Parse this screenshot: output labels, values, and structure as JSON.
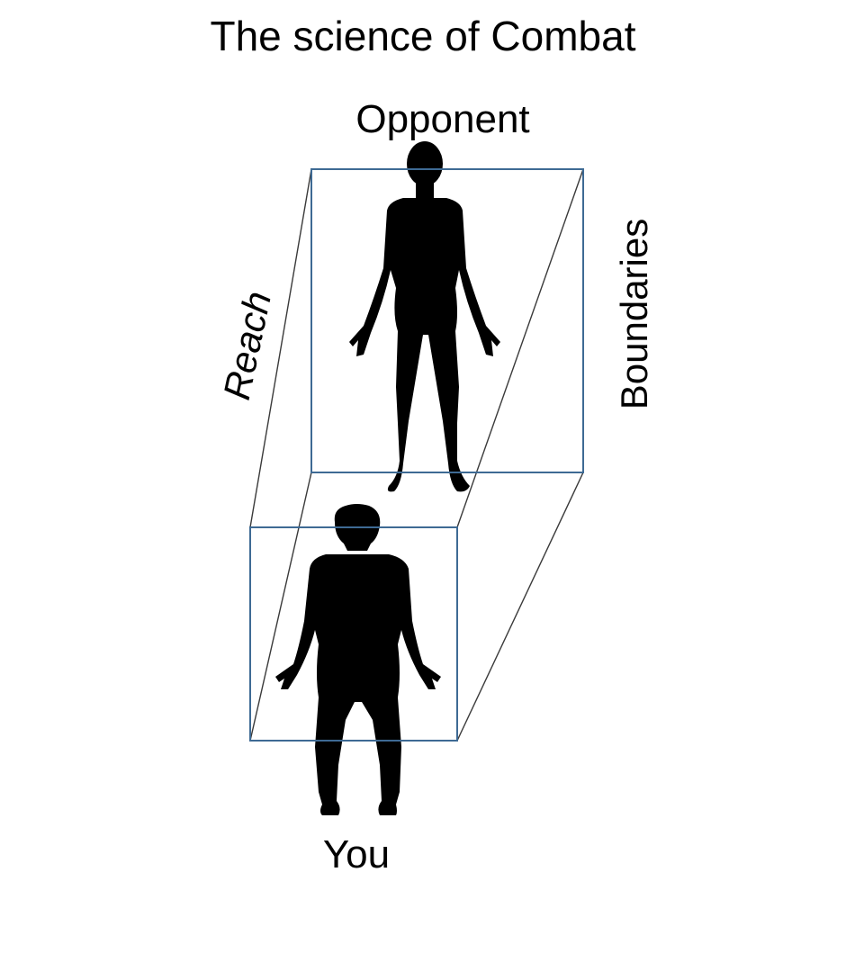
{
  "title": "The science of Combat",
  "labels": {
    "opponent": "Opponent",
    "you": "You",
    "reach": "Reach",
    "boundaries": "Boundaries"
  },
  "colors": {
    "box_stroke": "#3e6a94",
    "connector_stroke": "#3a3a3a",
    "silhouette": "#000000"
  },
  "icons": [
    "opponent-silhouette-icon",
    "you-silhouette-icon"
  ]
}
